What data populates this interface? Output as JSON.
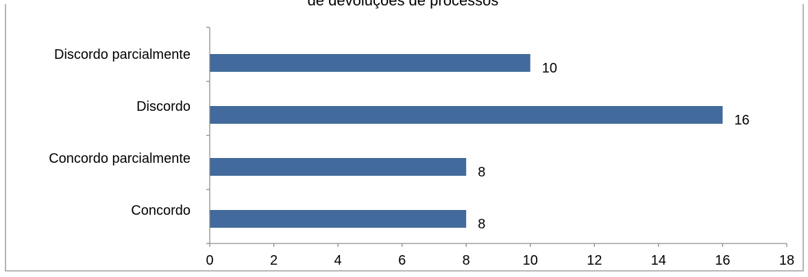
{
  "chart_data": {
    "type": "bar",
    "orientation": "horizontal",
    "title": "de devoluções de processos",
    "categories": [
      "Concordo",
      "Concordo parcialmente",
      "Discordo",
      "Discordo parcialmente"
    ],
    "values": [
      8,
      8,
      16,
      10
    ],
    "data_labels": [
      "8",
      "8",
      "16",
      "10"
    ],
    "xlim": [
      0,
      18
    ],
    "x_ticks": [
      0,
      2,
      4,
      6,
      8,
      10,
      12,
      14,
      16,
      18
    ],
    "grid": false,
    "legend": "none",
    "bar_color": "#426A9C"
  }
}
